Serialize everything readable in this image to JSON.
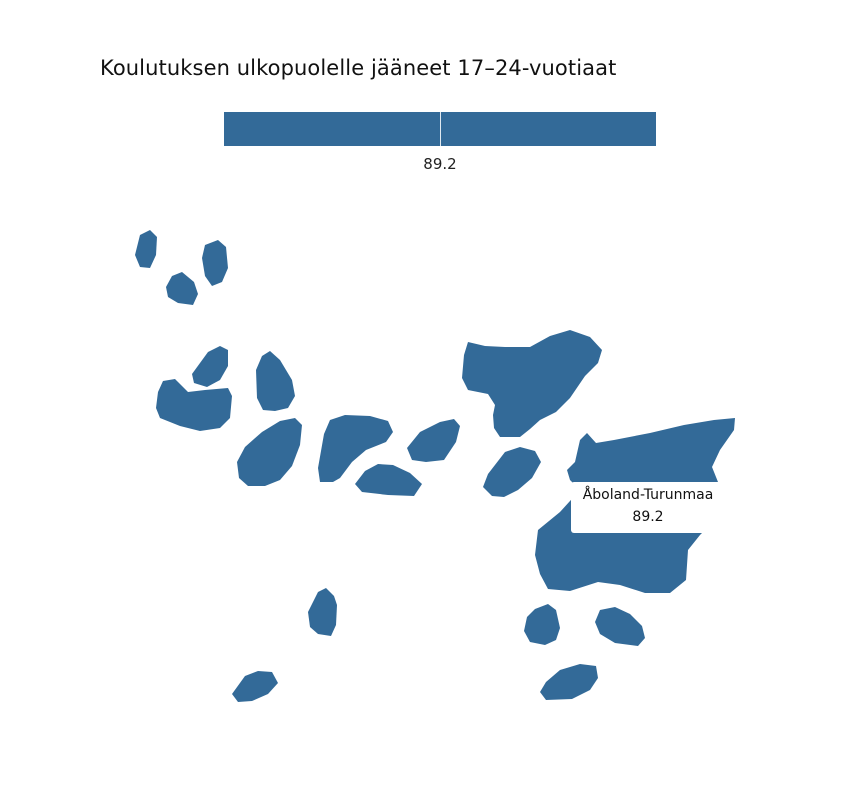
{
  "title": "Koulutuksen ulkopuolelle jääneet 17–24-vuotiaat",
  "legend": {
    "value_label": "89.2",
    "color": "#336a98"
  },
  "tooltip": {
    "region": "Åboland-Turunmaa",
    "value": "89.2"
  },
  "chart_data": {
    "type": "map",
    "regions": [
      {
        "name": "Åboland-Turunmaa",
        "value": 89.2
      }
    ],
    "fill_color": "#336a98"
  }
}
